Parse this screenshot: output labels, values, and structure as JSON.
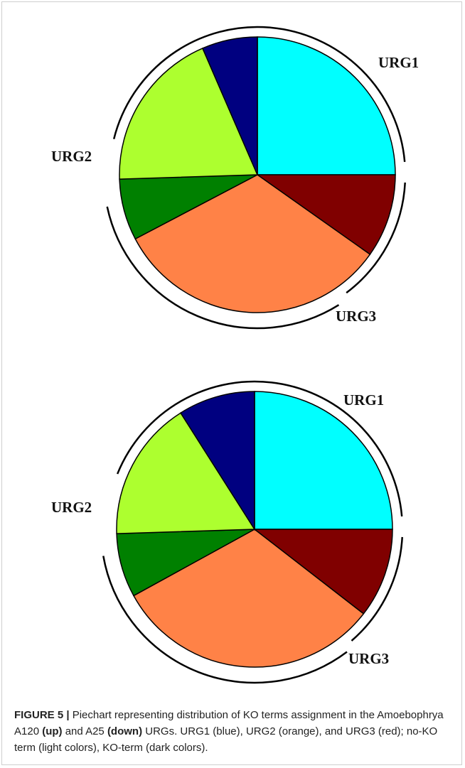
{
  "chart_data": [
    {
      "type": "pie",
      "panel": "up",
      "title": "",
      "slices": [
        {
          "group": "URG1",
          "term": "no-KO term",
          "value": 25.0,
          "color": "#00FFFF"
        },
        {
          "group": "URG3",
          "term": "KO-term",
          "value": 9.8,
          "color": "#800000"
        },
        {
          "group": "URG3",
          "term": "no-KO term",
          "value": 32.5,
          "color": "#FF8247"
        },
        {
          "group": "URG2",
          "term": "KO-term",
          "value": 7.2,
          "color": "#008000"
        },
        {
          "group": "URG2",
          "term": "no-KO term",
          "value": 19.0,
          "color": "#ADFF2F"
        },
        {
          "group": "URG1",
          "term": "KO-term",
          "value": 6.5,
          "color": "#000080"
        }
      ],
      "group_labels": [
        "URG1",
        "URG2",
        "URG3"
      ]
    },
    {
      "type": "pie",
      "panel": "down",
      "title": "",
      "slices": [
        {
          "group": "URG1",
          "term": "no-KO term",
          "value": 25.0,
          "color": "#00FFFF"
        },
        {
          "group": "URG3",
          "term": "KO-term",
          "value": 10.5,
          "color": "#800000"
        },
        {
          "group": "URG3",
          "term": "no-KO term",
          "value": 31.5,
          "color": "#FF8247"
        },
        {
          "group": "URG2",
          "term": "KO-term",
          "value": 7.5,
          "color": "#008000"
        },
        {
          "group": "URG2",
          "term": "no-KO term",
          "value": 16.5,
          "color": "#ADFF2F"
        },
        {
          "group": "URG1",
          "term": "KO-term",
          "value": 9.0,
          "color": "#000080"
        }
      ],
      "group_labels": [
        "URG1",
        "URG2",
        "URG3"
      ]
    }
  ],
  "caption": {
    "figure_label": "FIGURE 5 |",
    "text_1": " Piechart representing distribution of KO terms assignment in the Amoebophrya A120 ",
    "bold_1": "(up)",
    "text_2": " and A25 ",
    "bold_2": "(down)",
    "text_3": " URGs. URG1 (blue), URG2 (orange), and URG3 (red); no-KO term (light colors), KO-term (dark colors)."
  }
}
